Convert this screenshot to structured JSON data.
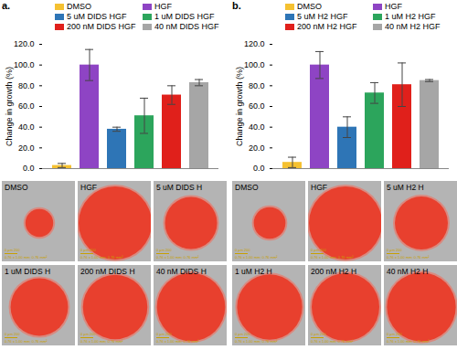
{
  "chart_data": [
    {
      "type": "bar",
      "panel_label": "a.",
      "ylabel": "Change in growth (%)",
      "categories": [
        "DMSO",
        "HGF",
        "5 uM DIDS HGF",
        "1 uM DIDS HGF",
        "200 nM DIDS HGF",
        "40 nM DIDS HGF"
      ],
      "values": [
        3,
        100,
        38,
        51,
        71,
        83
      ],
      "errors": [
        2,
        15,
        2,
        17,
        9,
        3
      ],
      "colors": [
        "#f5c131",
        "#8e44c4",
        "#2e75b6",
        "#2ca55c",
        "#e0201b",
        "#a6a6a6"
      ],
      "ylim": [
        0,
        120
      ],
      "yticks": [
        {
          "value": 0,
          "label": "0.0"
        },
        {
          "value": 20,
          "label": "20.0"
        },
        {
          "value": 40,
          "label": "40.0"
        },
        {
          "value": 60,
          "label": "60.0"
        },
        {
          "value": 80,
          "label": "80.0"
        },
        {
          "value": 100,
          "label": "100.0"
        },
        {
          "value": 120,
          "label": "120.0"
        }
      ],
      "tick_labels": "y",
      "grid": false
    },
    {
      "type": "bar",
      "panel_label": "b.",
      "ylabel": "Change in growth (%)",
      "categories": [
        "DMSO",
        "HGF",
        "5 uM H2 HGF",
        "1 uM H2 HGF",
        "200 nM H2 HGF",
        "40 nM H2 HGF"
      ],
      "values": [
        6,
        100,
        40,
        73,
        81,
        85
      ],
      "errors": [
        5,
        13,
        10,
        10,
        21,
        1
      ],
      "colors": [
        "#f5c131",
        "#8e44c4",
        "#2e75b6",
        "#2ca55c",
        "#e0201b",
        "#a6a6a6"
      ],
      "ylim": [
        0,
        120
      ],
      "yticks": [
        {
          "value": 0,
          "label": "0.0"
        },
        {
          "value": 20,
          "label": "20.0"
        },
        {
          "value": 40,
          "label": "40.0"
        },
        {
          "value": 60,
          "label": "60.0"
        },
        {
          "value": 80,
          "label": "80.0"
        },
        {
          "value": 100,
          "label": "100.0"
        },
        {
          "value": 120,
          "label": "120.0"
        }
      ],
      "tick_labels": "y",
      "grid": false
    }
  ],
  "micrographs": [
    {
      "labels": [
        "DMSO",
        "HGF",
        "5 uM DIDS H",
        "1 uM DIDS H",
        "200 nM DIDS H",
        "40 nM DIDS H"
      ],
      "scale_label": "0 µm 200",
      "field_label": "0.76 x 1.00 mm; 0.76 mm²"
    },
    {
      "labels": [
        "DMSO",
        "HGF",
        "5 uM H2 H",
        "1 uM H2 H",
        "200 nM H2 H",
        "40 nM H2 H"
      ],
      "scale_label": "0 µm 200",
      "field_label": "0.76 x 1.00 mm; 0.76 mm²"
    }
  ]
}
